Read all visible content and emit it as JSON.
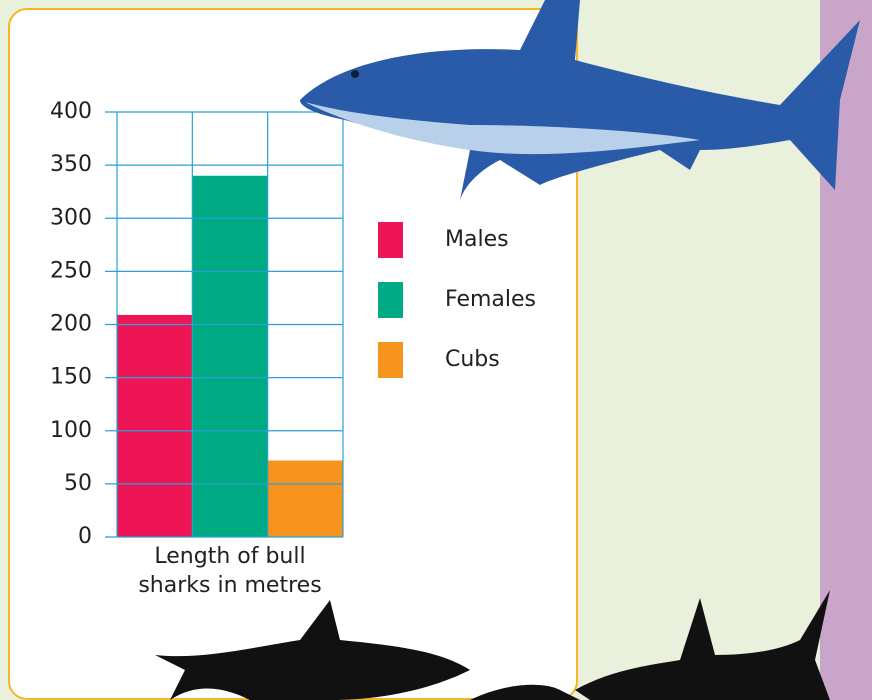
{
  "chart_data": {
    "type": "bar",
    "categories": [
      "Length of bull sharks in metres"
    ],
    "series": [
      {
        "name": "Males",
        "color": "#ee1556",
        "values": [
          209
        ]
      },
      {
        "name": "Females",
        "color": "#00ab84",
        "values": [
          340
        ]
      },
      {
        "name": "Cubs",
        "color": "#f7941d",
        "values": [
          72
        ]
      }
    ],
    "ylim": [
      0,
      400
    ],
    "yticks": [
      0,
      50,
      100,
      150,
      200,
      250,
      300,
      350,
      400
    ],
    "grid": true,
    "grid_color": "#2a9fd8"
  }
}
